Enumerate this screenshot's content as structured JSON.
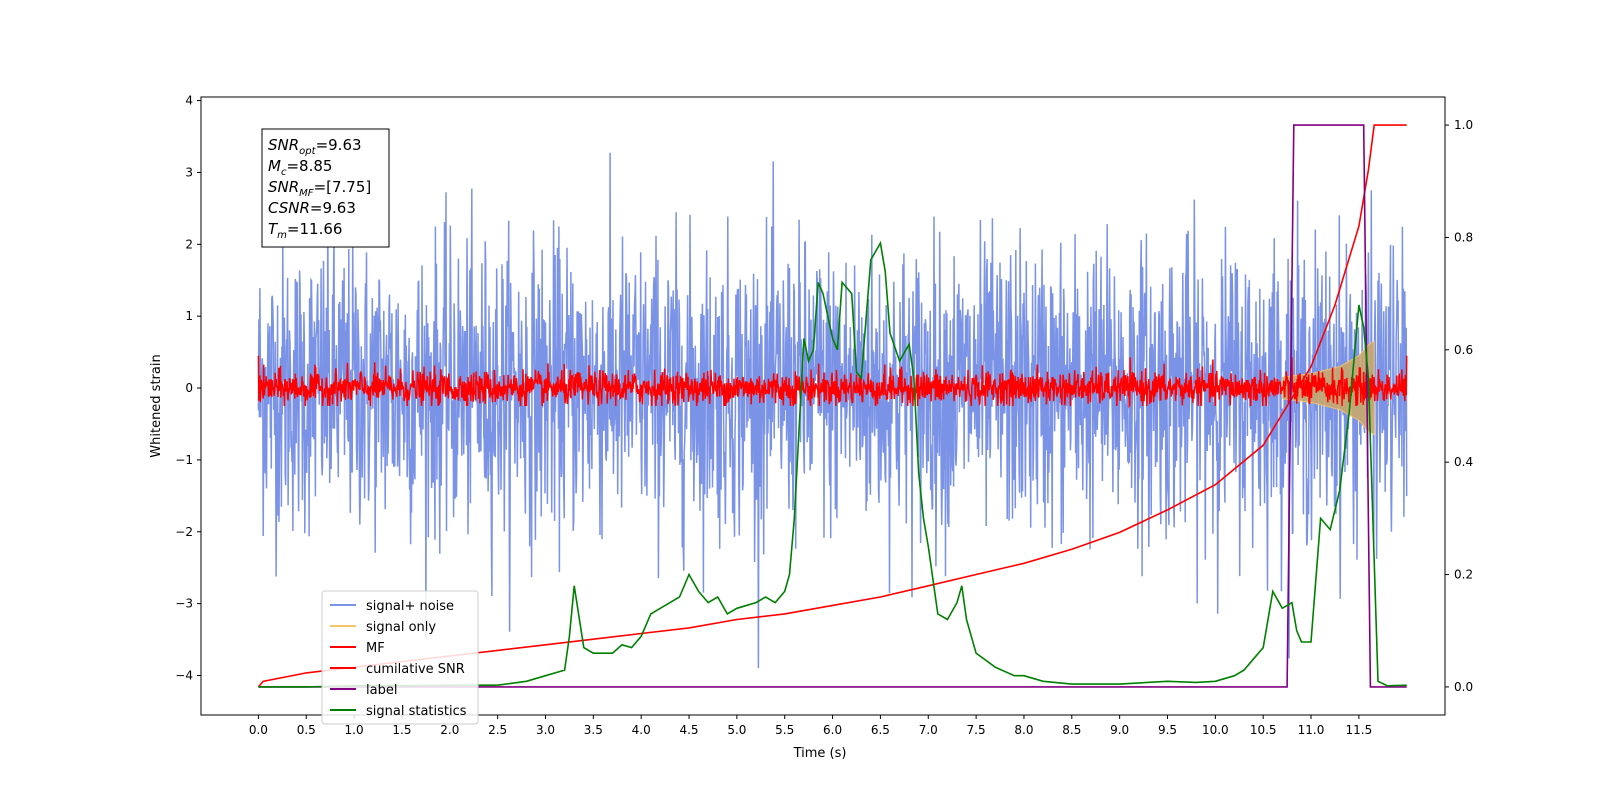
{
  "chart_data": {
    "type": "line",
    "xlabel": "Time (s)",
    "ylabel": "Whitened strain",
    "xlim": [
      -0.6,
      12.4
    ],
    "ylim": [
      -4.55,
      4.05
    ],
    "y2lim": [
      -0.05,
      1.05
    ],
    "x_ticks": [
      "0.0",
      "0.5",
      "1.0",
      "1.5",
      "2.0",
      "2.5",
      "3.0",
      "3.5",
      "4.0",
      "4.5",
      "5.0",
      "5.5",
      "6.0",
      "6.5",
      "7.0",
      "7.5",
      "8.0",
      "8.5",
      "9.0",
      "9.5",
      "10.0",
      "10.5",
      "11.0",
      "11.5"
    ],
    "y_ticks": [
      "4",
      "3",
      "2",
      "1",
      "0",
      "−1",
      "−2",
      "−3",
      "−4"
    ],
    "y2_ticks": [
      "1.0",
      "0.8",
      "0.6",
      "0.4",
      "0.2",
      "0.0"
    ],
    "legend_position": "lower left",
    "stats_box": {
      "lines": [
        {
          "base": "SNR",
          "sub": "opt",
          "value": "=9.63"
        },
        {
          "base": "M",
          "sub": "c",
          "value": "=8.85"
        },
        {
          "base": "SNR",
          "sub": "MF",
          "value": "=[7.75]"
        },
        {
          "base": "CSNR",
          "sub": "",
          "value": "=9.63"
        },
        {
          "base": "T",
          "sub": "m",
          "value": "=11.66"
        }
      ]
    },
    "series": [
      {
        "name": "signal+ noise",
        "color": "#7b93e6",
        "axis": "left",
        "noise_std": 1.0,
        "x_range": [
          0,
          12.0
        ]
      },
      {
        "name": "signal only",
        "color": "#f5c46b",
        "axis": "left",
        "envelope": {
          "x": [
            10.7,
            11.0,
            11.3,
            11.5,
            11.6,
            11.66
          ],
          "amp": [
            0.15,
            0.2,
            0.3,
            0.45,
            0.6,
            0.65
          ]
        }
      },
      {
        "name": "MF",
        "color": "#ff0000",
        "axis": "left",
        "noise_std": 0.12,
        "x_range": [
          0,
          12.0
        ]
      },
      {
        "name": "cumilative SNR",
        "color": "#ff0000",
        "axis": "right",
        "x": [
          0,
          0.05,
          0.5,
          1,
          1.5,
          2,
          2.5,
          3,
          3.5,
          4,
          4.5,
          5,
          5.5,
          6,
          6.5,
          7,
          7.5,
          8,
          8.5,
          9,
          9.5,
          10,
          10.5,
          10.75,
          11,
          11.25,
          11.5,
          11.6,
          11.66,
          11.7,
          12.0
        ],
        "y": [
          0.0,
          0.01,
          0.025,
          0.035,
          0.045,
          0.055,
          0.065,
          0.075,
          0.085,
          0.095,
          0.105,
          0.12,
          0.13,
          0.145,
          0.16,
          0.18,
          0.2,
          0.22,
          0.245,
          0.275,
          0.315,
          0.36,
          0.43,
          0.5,
          0.57,
          0.68,
          0.82,
          0.92,
          1.0,
          1.0,
          1.0
        ]
      },
      {
        "name": "label",
        "color": "#800080",
        "axis": "right",
        "x": [
          0,
          10.75,
          10.82,
          11.55,
          11.62,
          11.75,
          12.0
        ],
        "y": [
          0,
          0,
          1,
          1,
          0,
          0,
          0
        ]
      },
      {
        "name": "signal statistics",
        "color": "#008000",
        "axis": "right",
        "x": [
          0,
          0.5,
          1,
          1.5,
          2,
          2.5,
          2.8,
          3.0,
          3.1,
          3.2,
          3.25,
          3.3,
          3.4,
          3.5,
          3.7,
          3.8,
          3.9,
          4.0,
          4.1,
          4.2,
          4.4,
          4.5,
          4.6,
          4.7,
          4.8,
          4.9,
          5.0,
          5.2,
          5.3,
          5.4,
          5.5,
          5.55,
          5.6,
          5.7,
          5.75,
          5.8,
          5.85,
          5.9,
          6.0,
          6.05,
          6.1,
          6.2,
          6.25,
          6.3,
          6.4,
          6.5,
          6.55,
          6.6,
          6.7,
          6.8,
          6.85,
          6.9,
          6.95,
          7.0,
          7.1,
          7.2,
          7.3,
          7.35,
          7.4,
          7.5,
          7.7,
          7.9,
          8.0,
          8.2,
          8.5,
          9.0,
          9.5,
          9.8,
          10.0,
          10.2,
          10.3,
          10.4,
          10.5,
          10.6,
          10.7,
          10.8,
          10.85,
          10.9,
          11.0,
          11.1,
          11.2,
          11.3,
          11.4,
          11.5,
          11.55,
          11.6,
          11.7,
          11.8,
          12.0
        ],
        "y": [
          0.0,
          0.0,
          0.002,
          0.002,
          0.003,
          0.003,
          0.01,
          0.02,
          0.025,
          0.03,
          0.09,
          0.18,
          0.07,
          0.06,
          0.06,
          0.075,
          0.07,
          0.09,
          0.13,
          0.14,
          0.16,
          0.2,
          0.17,
          0.15,
          0.16,
          0.13,
          0.14,
          0.15,
          0.16,
          0.15,
          0.17,
          0.2,
          0.3,
          0.62,
          0.58,
          0.6,
          0.72,
          0.7,
          0.62,
          0.6,
          0.72,
          0.7,
          0.56,
          0.55,
          0.76,
          0.79,
          0.74,
          0.63,
          0.58,
          0.61,
          0.55,
          0.38,
          0.3,
          0.25,
          0.13,
          0.12,
          0.15,
          0.18,
          0.12,
          0.06,
          0.035,
          0.02,
          0.02,
          0.01,
          0.005,
          0.005,
          0.01,
          0.008,
          0.01,
          0.02,
          0.03,
          0.05,
          0.07,
          0.17,
          0.14,
          0.15,
          0.1,
          0.08,
          0.08,
          0.3,
          0.28,
          0.35,
          0.49,
          0.68,
          0.64,
          0.55,
          0.01,
          0.002,
          0.003
        ]
      }
    ]
  }
}
